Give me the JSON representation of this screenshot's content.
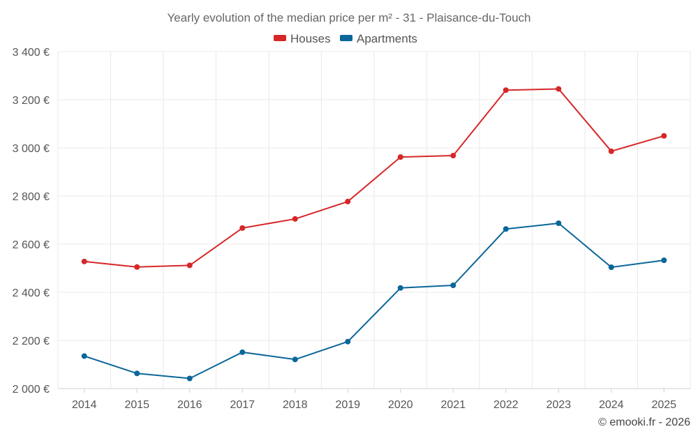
{
  "chart_data": {
    "type": "line",
    "title": "Yearly evolution of the median price per m² - 31 - Plaisance-du-Touch",
    "x": [
      "2014",
      "2015",
      "2016",
      "2017",
      "2018",
      "2019",
      "2020",
      "2021",
      "2022",
      "2023",
      "2024",
      "2025"
    ],
    "series": [
      {
        "name": "Houses",
        "color": "#d62728",
        "values": [
          2528,
          2505,
          2512,
          2667,
          2705,
          2777,
          2962,
          2968,
          3240,
          3245,
          2986,
          3050
        ]
      },
      {
        "name": "Apartments",
        "color": "#0b6699",
        "values": [
          2135,
          2063,
          2042,
          2151,
          2121,
          2195,
          2418,
          2429,
          2663,
          2687,
          2504,
          2533
        ]
      }
    ],
    "ylim": [
      2000,
      3400
    ],
    "yticks": [
      2000,
      2200,
      2400,
      2600,
      2800,
      3000,
      3200,
      3400
    ],
    "ytick_labels": [
      "2 000 €",
      "2 200 €",
      "2 400 €",
      "2 600 €",
      "2 800 €",
      "3 000 €",
      "3 200 €",
      "3 400 €"
    ],
    "xlabel": "",
    "ylabel": "",
    "grid": true,
    "legend_position": "top-center"
  },
  "credit": "© emooki.fr - 2026"
}
